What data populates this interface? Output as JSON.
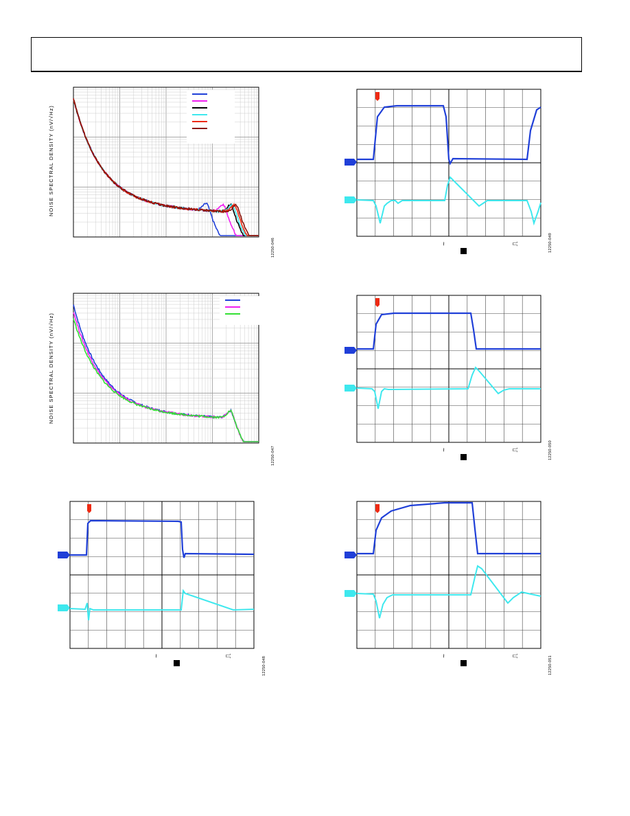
{
  "page": {
    "header": {
      "text": ""
    }
  },
  "colors": {
    "blue": "#1f3fd8",
    "magenta": "#f020f0",
    "black": "#000000",
    "cyan": "#3ee8ee",
    "red": "#ee2a12",
    "darkred": "#8a1208",
    "green": "#33e033"
  },
  "figures": [
    {
      "id": "fig46",
      "ylabel": "NOISE SPECTRAL DENSITY (nV/√Hz)",
      "figid": "12250-046"
    },
    {
      "id": "fig47",
      "ylabel": "NOISE SPECTRAL DENSITY (nV/√Hz)",
      "figid": "12250-047"
    },
    {
      "id": "fig48",
      "figid": "12250-048",
      "tilde": "~",
      "step": "⎍"
    },
    {
      "id": "fig49",
      "figid": "12250-049",
      "tilde": "~",
      "step": "⎍"
    },
    {
      "id": "fig50",
      "figid": "12250-050",
      "tilde": "~",
      "step": "⎍"
    },
    {
      "id": "fig51",
      "figid": "12250-051",
      "tilde": "~",
      "step": "⎍"
    }
  ],
  "chart_data": [
    {
      "type": "line",
      "title": "",
      "ylabel": "NOISE SPECTRAL DENSITY (nV/√Hz)",
      "xscale": "log",
      "yscale": "log",
      "legend": "top-right",
      "series": [
        {
          "color": "#1f3fd8",
          "resonance_x": 0.72
        },
        {
          "color": "#f020f0",
          "resonance_x": 0.81
        },
        {
          "color": "#000000",
          "resonance_x": 0.85
        },
        {
          "color": "#3ee8ee",
          "resonance_x": 0.86
        },
        {
          "color": "#ee2a12",
          "resonance_x": 0.87
        },
        {
          "color": "#8a1208",
          "resonance_x": 0.88
        }
      ]
    },
    {
      "type": "line",
      "title": "",
      "ylabel": "NOISE SPECTRAL DENSITY (nV/√Hz)",
      "xscale": "log",
      "yscale": "log",
      "legend": "top-right",
      "series": [
        {
          "color": "#1f3fd8",
          "start_level": 1.0
        },
        {
          "color": "#f020f0",
          "start_level": 0.93
        },
        {
          "color": "#33e033",
          "start_level": 0.86
        }
      ]
    }
  ]
}
